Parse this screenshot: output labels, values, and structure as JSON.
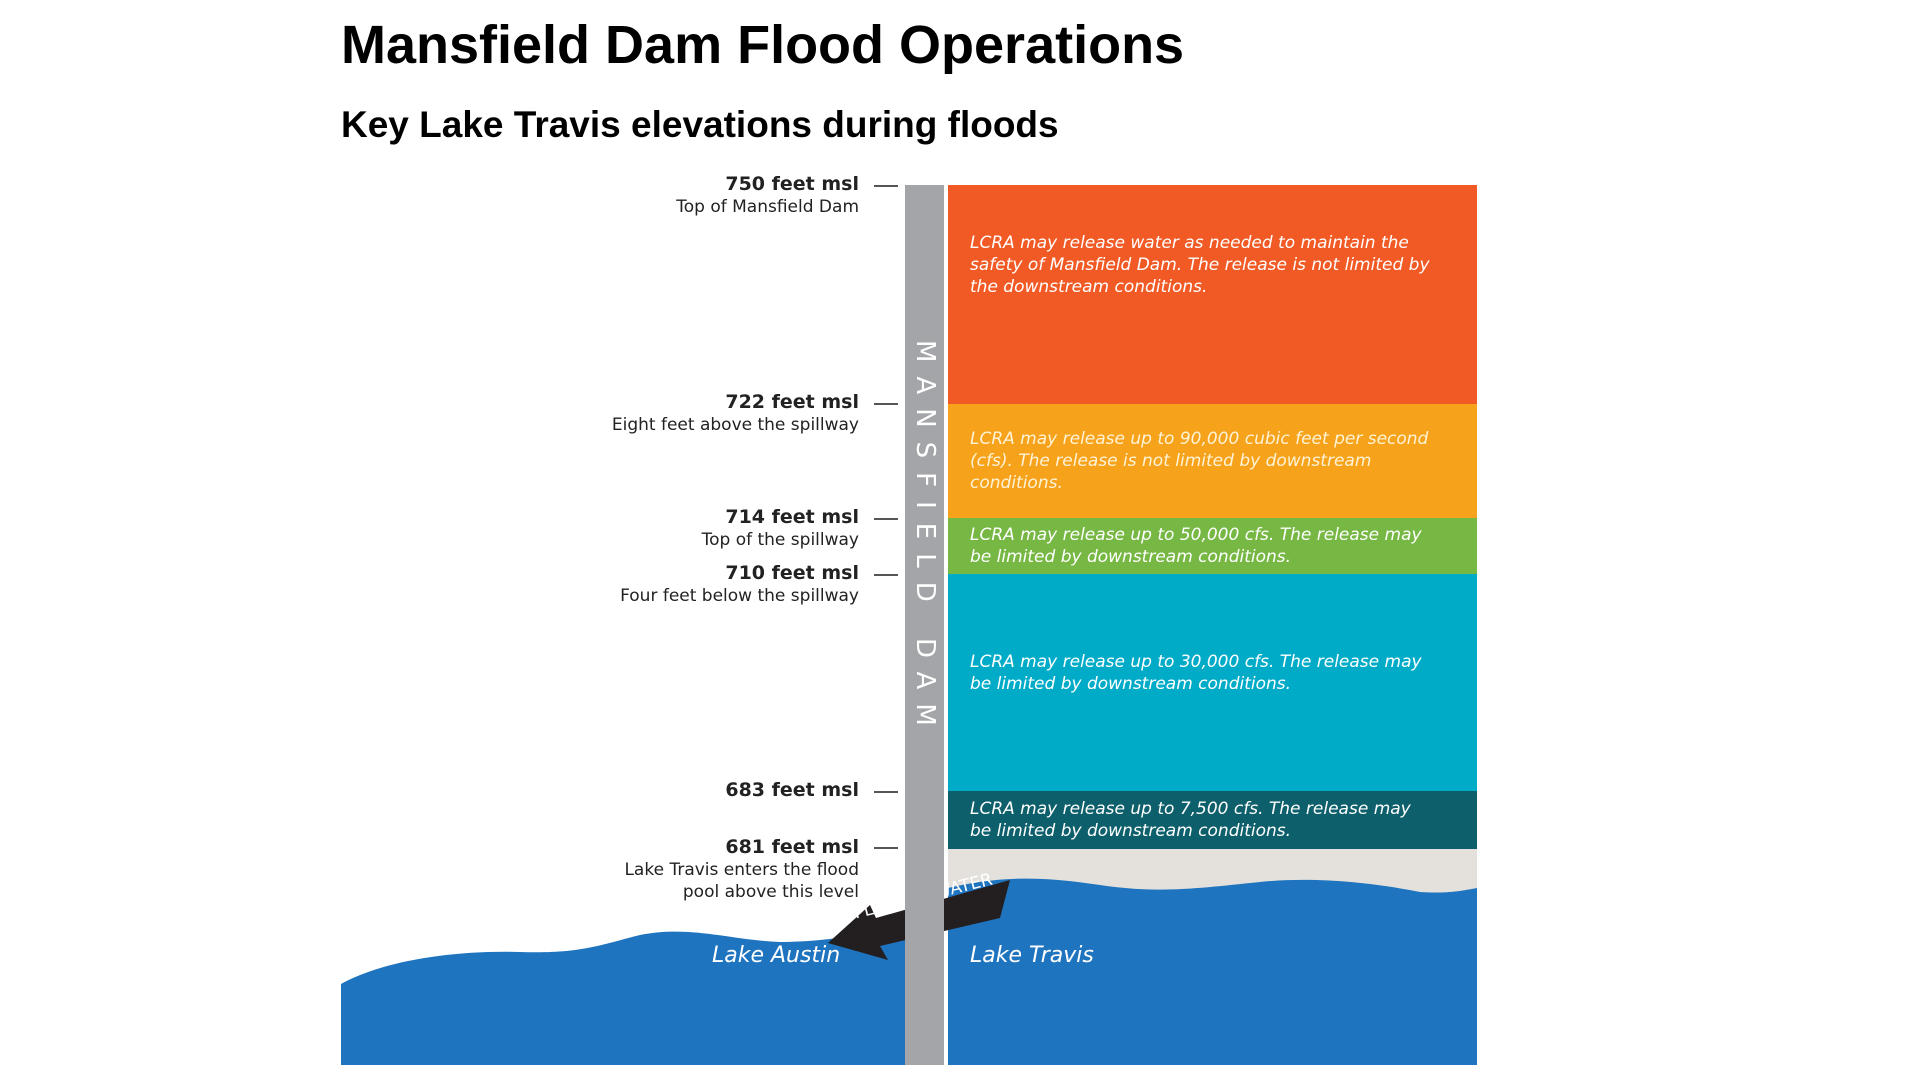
{
  "title": "Mansfield Dam Flood Operations",
  "subtitle": "Key Lake Travis elevations during floods",
  "dam_label": "MANSFIELD DAM",
  "elevations": [
    {
      "level": "750 feet msl",
      "desc": "Top of Mansfield Dam"
    },
    {
      "level": "722 feet msl",
      "desc": "Eight feet above the spillway"
    },
    {
      "level": "714 feet msl",
      "desc": "Top of the spillway"
    },
    {
      "level": "710 feet msl",
      "desc": "Four feet below the spillway"
    },
    {
      "level": "683 feet msl",
      "desc": ""
    },
    {
      "level": "681 feet msl",
      "desc": "Lake Travis enters the flood pool above this level"
    }
  ],
  "bands": [
    {
      "text": "LCRA may release water as needed to maintain the safety of Mansfield Dam. The release is not limited by the downstream conditions.",
      "color": "#f15a24"
    },
    {
      "text": "LCRA may release up to 90,000 cubic feet per second (cfs). The release is not limited by downstream conditions.",
      "color": "#f7a21b"
    },
    {
      "text": "LCRA may release up to 50,000 cfs. The release may be limited by downstream conditions.",
      "color": "#76b843"
    },
    {
      "text": "LCRA may release up to 30,000 cfs. The release may be limited by downstream conditions.",
      "color": "#00abc8"
    },
    {
      "text": "LCRA may release up to 7,500 cfs. The release may be limited by downstream conditions.",
      "color": "#0d5f6b"
    }
  ],
  "flow_label": "FLOW OF WATER",
  "lake_austin": "Lake Austin",
  "lake_travis": "Lake Travis",
  "colors": {
    "water": "#1f74c0",
    "dam": "#a3a5a8",
    "flood_pool_empty": "#e4e1dc",
    "arrow": "#231f20"
  }
}
